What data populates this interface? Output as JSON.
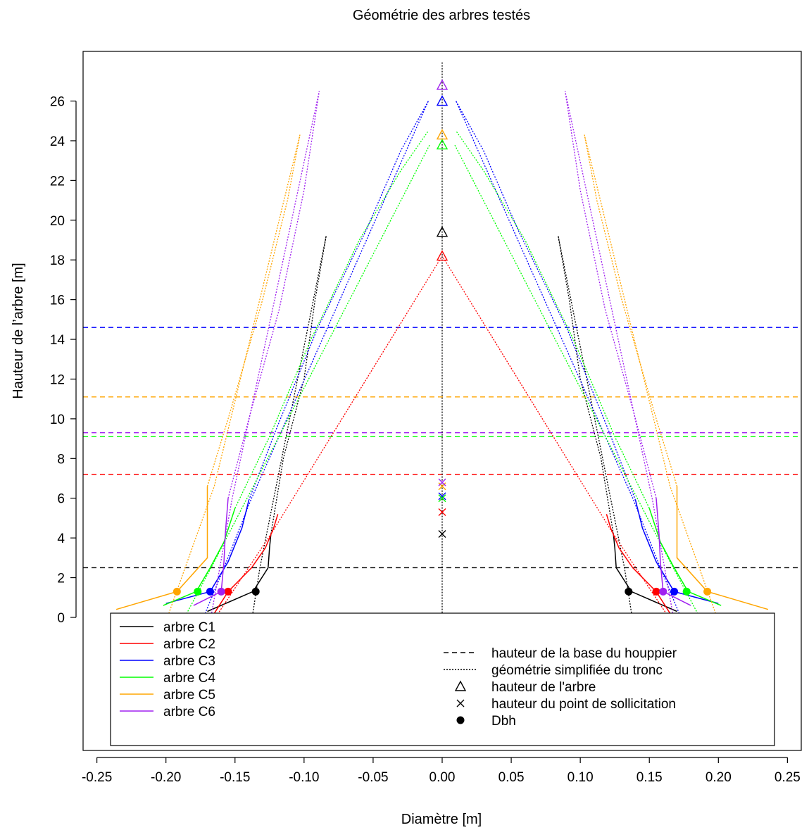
{
  "chart_data": {
    "type": "line",
    "title": "Géométrie des arbres testés",
    "xlabel": "Diamètre [m]",
    "ylabel": "Hauteur de l’arbre [m]",
    "xlim": [
      -0.26,
      0.26
    ],
    "ylim": [
      -6.7,
      28.5
    ],
    "x_ticks": [
      -0.25,
      -0.2,
      -0.15,
      -0.1,
      -0.05,
      0.0,
      0.05,
      0.1,
      0.15,
      0.2,
      0.25
    ],
    "x_tick_labels": [
      "-0.25",
      "-0.20",
      "-0.15",
      "-0.10",
      "-0.05",
      "0.00",
      "0.05",
      "0.10",
      "0.15",
      "0.20",
      "0.25"
    ],
    "y_ticks": [
      0,
      2,
      4,
      6,
      8,
      10,
      12,
      14,
      16,
      18,
      20,
      22,
      24,
      26
    ],
    "y_tick_labels": [
      "0",
      "2",
      "4",
      "6",
      "8",
      "10",
      "12",
      "14",
      "16",
      "18",
      "20",
      "22",
      "24",
      "26"
    ],
    "legend_placement": "bottom",
    "grid": false,
    "center_line": {
      "x": 0,
      "y_from": -0.2,
      "y_to": 28
    },
    "series": [
      {
        "name": "arbre C1",
        "color": "#000000",
        "profile": [
          [
            -0.17,
            0.3
          ],
          [
            -0.137,
            1.3
          ],
          [
            -0.126,
            2.5
          ],
          [
            -0.125,
            3.5
          ],
          [
            -0.124,
            4.2
          ]
        ],
        "crown": [
          [
            -0.124,
            4.2
          ],
          [
            -0.115,
            8
          ],
          [
            -0.1,
            12
          ],
          [
            -0.092,
            16
          ],
          [
            -0.084,
            19.2
          ]
        ],
        "simplified": [
          [
            -0.138,
            -0.2
          ],
          [
            -0.132,
            2.5
          ],
          [
            -0.084,
            19.2
          ]
        ],
        "crown_base": 2.5,
        "tree_height": 19.4,
        "load_point": 4.2,
        "dbh": 0.135,
        "dbh_h": 1.3
      },
      {
        "name": "arbre C2",
        "color": "#ff0000",
        "profile": [
          [
            -0.165,
            0.2
          ],
          [
            -0.155,
            1.3
          ],
          [
            -0.138,
            2.5
          ],
          [
            -0.128,
            3.5
          ],
          [
            -0.122,
            4.5
          ],
          [
            -0.119,
            5.2
          ]
        ],
        "crown": null,
        "simplified": [
          [
            -0.166,
            -0.2
          ],
          [
            -0.123,
            4.3
          ],
          [
            0.0,
            18.2
          ]
        ],
        "crown_base": 7.2,
        "tree_height": 18.2,
        "load_point": 5.3,
        "dbh": 0.155,
        "dbh_h": 1.3
      },
      {
        "name": "arbre C3",
        "color": "#0000ff",
        "profile": [
          [
            -0.2,
            0.7
          ],
          [
            -0.168,
            1.3
          ],
          [
            -0.155,
            2.8
          ],
          [
            -0.145,
            4.5
          ],
          [
            -0.14,
            5.9
          ]
        ],
        "crown": [
          [
            -0.14,
            5.9
          ],
          [
            -0.12,
            9.5
          ],
          [
            -0.09,
            14.6
          ],
          [
            -0.055,
            19.5
          ],
          [
            -0.03,
            23.5
          ],
          [
            -0.01,
            26
          ]
        ],
        "simplified": [
          [
            -0.174,
            -0.2
          ],
          [
            -0.158,
            2.5
          ],
          [
            -0.138,
            6.0
          ],
          [
            -0.01,
            26
          ]
        ],
        "crown_base": 14.6,
        "tree_height": 26.0,
        "load_point": 6.1,
        "dbh": 0.168,
        "dbh_h": 1.3
      },
      {
        "name": "arbre C4",
        "color": "#00ff00",
        "profile": [
          [
            -0.202,
            0.6
          ],
          [
            -0.178,
            1.3
          ],
          [
            -0.168,
            2.5
          ],
          [
            -0.158,
            3.8
          ],
          [
            -0.15,
            5.5
          ]
        ],
        "crown": [
          [
            -0.15,
            5.5
          ],
          [
            -0.125,
            9.1
          ],
          [
            -0.095,
            14
          ],
          [
            -0.06,
            19
          ],
          [
            -0.03,
            22.5
          ],
          [
            -0.01,
            24.5
          ]
        ],
        "simplified": [
          [
            -0.188,
            -0.2
          ],
          [
            -0.165,
            2.8
          ],
          [
            -0.009,
            23.8
          ]
        ],
        "crown_base": 9.1,
        "tree_height": 23.8,
        "load_point": 6.0,
        "dbh": 0.177,
        "dbh_h": 1.3
      },
      {
        "name": "arbre C5",
        "color": "#ffa500",
        "profile": [
          [
            -0.236,
            0.4
          ],
          [
            -0.192,
            1.3
          ],
          [
            -0.17,
            3.0
          ],
          [
            -0.17,
            6.6
          ]
        ],
        "crown": [
          [
            -0.17,
            6.6
          ],
          [
            -0.155,
            10
          ],
          [
            -0.13,
            16
          ],
          [
            -0.112,
            21
          ],
          [
            -0.103,
            24.3
          ]
        ],
        "simplified": [
          [
            -0.2,
            -0.2
          ],
          [
            -0.165,
            6.6
          ],
          [
            -0.103,
            24.3
          ]
        ],
        "crown_base": 11.1,
        "tree_height": 24.3,
        "load_point": 6.6,
        "dbh": 0.192,
        "dbh_h": 1.3
      },
      {
        "name": "arbre C6",
        "color": "#a020f0",
        "profile": [
          [
            -0.18,
            0.6
          ],
          [
            -0.16,
            1.3
          ],
          [
            -0.158,
            2.8
          ],
          [
            -0.157,
            4.2
          ],
          [
            -0.155,
            6.0
          ]
        ],
        "crown": [
          [
            -0.155,
            6.0
          ],
          [
            -0.14,
            10
          ],
          [
            -0.118,
            15.5
          ],
          [
            -0.1,
            21.5
          ],
          [
            -0.089,
            26.5
          ]
        ],
        "simplified": [
          [
            -0.168,
            -0.2
          ],
          [
            -0.152,
            6.0
          ],
          [
            -0.089,
            26.5
          ]
        ],
        "crown_base": 9.3,
        "tree_height": 26.8,
        "load_point": 6.8,
        "dbh": 0.16,
        "dbh_h": 1.3
      }
    ],
    "legend_symbols": [
      {
        "symbol": "dashed",
        "label": "hauteur de la base du houppier"
      },
      {
        "symbol": "dotted",
        "label": "géométrie simplifiée du tronc"
      },
      {
        "symbol": "triangle",
        "label": "hauteur de l'arbre"
      },
      {
        "symbol": "cross",
        "label": "hauteur du point de sollicitation"
      },
      {
        "symbol": "dot",
        "label": "Dbh"
      }
    ]
  }
}
